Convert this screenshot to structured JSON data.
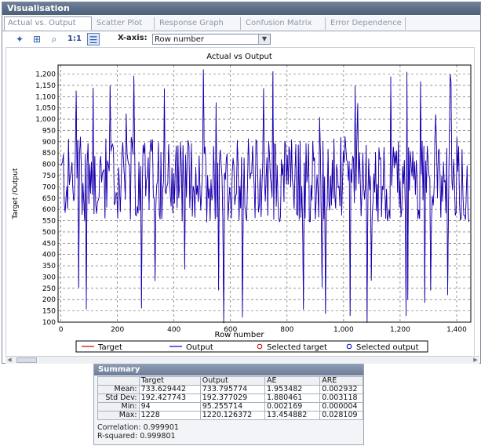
{
  "window": {
    "title": "Visualisation"
  },
  "tabs": [
    {
      "label": "Actual vs. Output",
      "active": true
    },
    {
      "label": "Scatter Plot",
      "active": false
    },
    {
      "label": "Response Graph",
      "active": false
    },
    {
      "label": "Confusion Matrix",
      "active": false
    },
    {
      "label": "Error Dependence",
      "active": false
    }
  ],
  "toolbar": {
    "icons": [
      "add-series-icon",
      "fit-icon",
      "zoom-icon",
      "one-to-one-icon",
      "legend-icon"
    ],
    "one_to_one_label": "1:1",
    "xaxis_label": "X-axis:",
    "xaxis_value": "Row number"
  },
  "chart_data": {
    "type": "line",
    "title": "Actual vs Output",
    "xlabel": "Row number",
    "ylabel": "Target /Output",
    "xlim": [
      -10,
      1450
    ],
    "ylim": [
      100,
      1240
    ],
    "xticks": [
      0,
      200,
      400,
      600,
      800,
      1000,
      1200,
      1400
    ],
    "xtick_labels": [
      "0",
      "200",
      "400",
      "600",
      "800",
      "1,000",
      "1,200",
      "1,400"
    ],
    "yticks": [
      100,
      150,
      200,
      250,
      300,
      350,
      400,
      450,
      500,
      550,
      600,
      650,
      700,
      750,
      800,
      850,
      900,
      950,
      1000,
      1050,
      1100,
      1150,
      1200
    ],
    "ytick_labels": [
      "100",
      "150",
      "200",
      "250",
      "300",
      "350",
      "400",
      "450",
      "500",
      "550",
      "600",
      "650",
      "700",
      "750",
      "800",
      "850",
      "900",
      "950",
      "1,000",
      "1,050",
      "1,100",
      "1,150",
      "1,200"
    ],
    "grid": true,
    "legend": [
      "Target",
      "Output",
      "Selected target",
      "Selected output"
    ],
    "series": [
      {
        "name": "Target",
        "color": "#c00000",
        "x_start": 0,
        "x_end": 1445,
        "mean": 733.63,
        "min": 94,
        "max": 1228
      },
      {
        "name": "Output",
        "color": "#0000c8",
        "x_start": 0,
        "x_end": 1445,
        "mean": 733.8,
        "min": 95.26,
        "max": 1220.13
      }
    ]
  },
  "summary": {
    "title": "Summary",
    "columns": [
      "",
      "Target",
      "Output",
      "AE",
      "ARE"
    ],
    "rows": [
      [
        "Mean:",
        "733.629442",
        "733.795774",
        "1.953482",
        "0.002932"
      ],
      [
        "Std Dev:",
        "192.427743",
        "192.377029",
        "1.880461",
        "0.003118"
      ],
      [
        "Min:",
        "94",
        "95.255714",
        "0.002169",
        "0.000004"
      ],
      [
        "Max:",
        "1228",
        "1220.126372",
        "13.454882",
        "0.028109"
      ]
    ],
    "correlation": "Correlation:  0.999901",
    "r_squared": "R-squared:  0.999801"
  }
}
